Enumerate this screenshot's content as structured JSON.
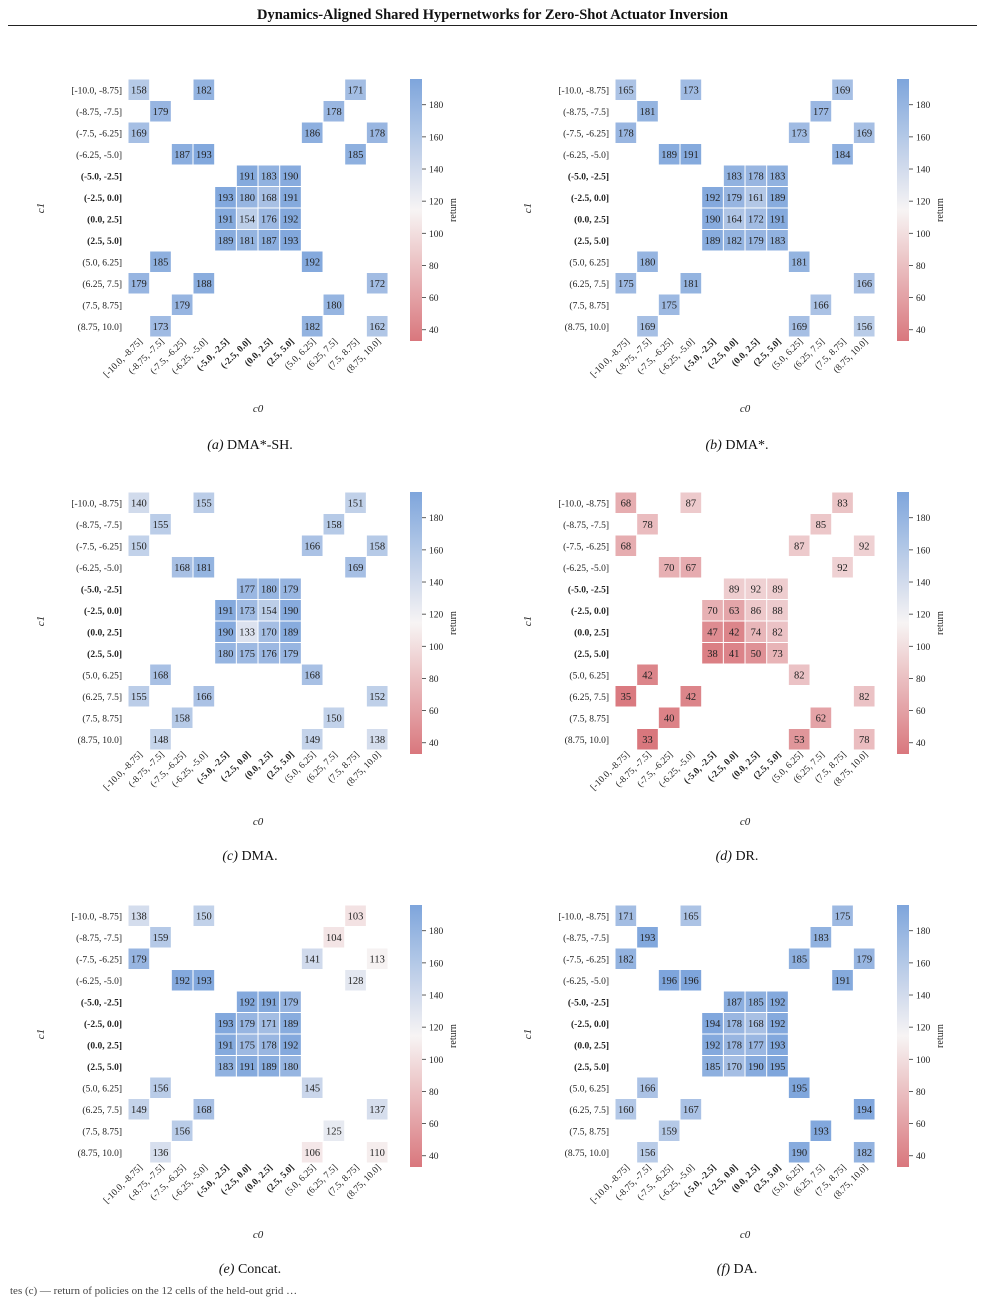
{
  "page": {
    "title": "Dynamics-Aligned Shared Hypernetworks for Zero-Shot Actuator Inversion",
    "footer": "tes (c) — return of policies on the 12 cells of the held-out grid …"
  },
  "colors": {
    "low": "#d9777d",
    "mid": "#f7f4f4",
    "high": "#7ea5dc"
  },
  "chart_data": [
    {
      "type": "heatmap",
      "caption_letter": "(a)",
      "caption_text": "DMA*-SH.",
      "xlabel": "c0",
      "ylabel": "c1",
      "colorbar_label": "return",
      "clim": [
        33,
        196
      ],
      "colorbar_ticks": [
        40,
        60,
        80,
        100,
        120,
        140,
        160,
        180
      ],
      "categories": [
        "[-10.0, -8.75]",
        "(-8.75, -7.5]",
        "(-7.5, -6.25]",
        "(-6.25, -5.0]",
        "(-5.0, -2.5]",
        "(-2.5, 0.0]",
        "(0.0, 2.5]",
        "(2.5, 5.0]",
        "(5.0, 6.25]",
        "(6.25, 7.5]",
        "(7.5, 8.75]",
        "(8.75, 10.0]"
      ],
      "bold_categories": [
        4,
        5,
        6,
        7
      ],
      "values": [
        [
          158,
          null,
          null,
          182,
          null,
          null,
          null,
          null,
          null,
          null,
          171,
          null
        ],
        [
          null,
          179,
          null,
          null,
          null,
          null,
          null,
          null,
          null,
          178,
          null,
          null
        ],
        [
          169,
          null,
          null,
          null,
          null,
          null,
          null,
          null,
          186,
          null,
          null,
          178
        ],
        [
          null,
          null,
          187,
          193,
          null,
          null,
          null,
          null,
          null,
          null,
          185,
          null
        ],
        [
          null,
          null,
          null,
          null,
          null,
          191,
          183,
          190,
          null,
          null,
          null,
          null
        ],
        [
          null,
          null,
          null,
          null,
          193,
          180,
          168,
          191,
          null,
          null,
          null,
          null
        ],
        [
          null,
          null,
          null,
          null,
          191,
          154,
          176,
          192,
          null,
          null,
          null,
          null
        ],
        [
          null,
          null,
          null,
          null,
          189,
          181,
          187,
          193,
          null,
          null,
          null,
          null
        ],
        [
          null,
          185,
          null,
          null,
          null,
          null,
          null,
          null,
          192,
          null,
          null,
          null
        ],
        [
          179,
          null,
          null,
          188,
          null,
          null,
          null,
          null,
          null,
          null,
          null,
          172
        ],
        [
          null,
          null,
          179,
          null,
          null,
          null,
          null,
          null,
          null,
          180,
          null,
          null
        ],
        [
          null,
          173,
          null,
          null,
          null,
          null,
          null,
          null,
          182,
          null,
          null,
          162
        ]
      ]
    },
    {
      "type": "heatmap",
      "caption_letter": "(b)",
      "caption_text": "DMA*.",
      "xlabel": "c0",
      "ylabel": "c1",
      "colorbar_label": "return",
      "clim": [
        33,
        196
      ],
      "colorbar_ticks": [
        40,
        60,
        80,
        100,
        120,
        140,
        160,
        180
      ],
      "categories": [
        "[-10.0, -8.75]",
        "(-8.75, -7.5]",
        "(-7.5, -6.25]",
        "(-6.25, -5.0]",
        "(-5.0, -2.5]",
        "(-2.5, 0.0]",
        "(0.0, 2.5]",
        "(2.5, 5.0]",
        "(5.0, 6.25]",
        "(6.25, 7.5]",
        "(7.5, 8.75]",
        "(8.75, 10.0]"
      ],
      "bold_categories": [
        4,
        5,
        6,
        7
      ],
      "values": [
        [
          165,
          null,
          null,
          173,
          null,
          null,
          null,
          null,
          null,
          null,
          169,
          null
        ],
        [
          null,
          181,
          null,
          null,
          null,
          null,
          null,
          null,
          null,
          177,
          null,
          null
        ],
        [
          178,
          null,
          null,
          null,
          null,
          null,
          null,
          null,
          173,
          null,
          null,
          169
        ],
        [
          null,
          null,
          189,
          191,
          null,
          null,
          null,
          null,
          null,
          null,
          184,
          null
        ],
        [
          null,
          null,
          null,
          null,
          null,
          183,
          178,
          183,
          null,
          null,
          null,
          null
        ],
        [
          null,
          null,
          null,
          null,
          192,
          179,
          161,
          189,
          null,
          null,
          null,
          null
        ],
        [
          null,
          null,
          null,
          null,
          190,
          164,
          172,
          191,
          null,
          null,
          null,
          null
        ],
        [
          null,
          null,
          null,
          null,
          189,
          182,
          179,
          183,
          null,
          null,
          null,
          null
        ],
        [
          null,
          180,
          null,
          null,
          null,
          null,
          null,
          null,
          181,
          null,
          null,
          null
        ],
        [
          175,
          null,
          null,
          181,
          null,
          null,
          null,
          null,
          null,
          null,
          null,
          166
        ],
        [
          null,
          null,
          175,
          null,
          null,
          null,
          null,
          null,
          null,
          166,
          null,
          null
        ],
        [
          null,
          169,
          null,
          null,
          null,
          null,
          null,
          null,
          169,
          null,
          null,
          156
        ]
      ]
    },
    {
      "type": "heatmap",
      "caption_letter": "(c)",
      "caption_text": "DMA.",
      "xlabel": "c0",
      "ylabel": "c1",
      "colorbar_label": "return",
      "clim": [
        33,
        196
      ],
      "colorbar_ticks": [
        40,
        60,
        80,
        100,
        120,
        140,
        160,
        180
      ],
      "categories": [
        "[-10.0, -8.75]",
        "(-8.75, -7.5]",
        "(-7.5, -6.25]",
        "(-6.25, -5.0]",
        "(-5.0, -2.5]",
        "(-2.5, 0.0]",
        "(0.0, 2.5]",
        "(2.5, 5.0]",
        "(5.0, 6.25]",
        "(6.25, 7.5]",
        "(7.5, 8.75]",
        "(8.75, 10.0]"
      ],
      "bold_categories": [
        4,
        5,
        6,
        7
      ],
      "values": [
        [
          140,
          null,
          null,
          155,
          null,
          null,
          null,
          null,
          null,
          null,
          151,
          null
        ],
        [
          null,
          155,
          null,
          null,
          null,
          null,
          null,
          null,
          null,
          158,
          null,
          null
        ],
        [
          150,
          null,
          null,
          null,
          null,
          null,
          null,
          null,
          166,
          null,
          null,
          158
        ],
        [
          null,
          null,
          168,
          181,
          null,
          null,
          null,
          null,
          null,
          null,
          169,
          null
        ],
        [
          null,
          null,
          null,
          null,
          null,
          177,
          180,
          179,
          null,
          null,
          null,
          null
        ],
        [
          null,
          null,
          null,
          null,
          191,
          173,
          154,
          190,
          null,
          null,
          null,
          null
        ],
        [
          null,
          null,
          null,
          null,
          190,
          133,
          170,
          189,
          null,
          null,
          null,
          null
        ],
        [
          null,
          null,
          null,
          null,
          180,
          175,
          176,
          179,
          null,
          null,
          null,
          null
        ],
        [
          null,
          168,
          null,
          null,
          null,
          null,
          null,
          null,
          168,
          null,
          null,
          null
        ],
        [
          155,
          null,
          null,
          166,
          null,
          null,
          null,
          null,
          null,
          null,
          null,
          152
        ],
        [
          null,
          null,
          158,
          null,
          null,
          null,
          null,
          null,
          null,
          150,
          null,
          null
        ],
        [
          null,
          148,
          null,
          null,
          null,
          null,
          null,
          null,
          149,
          null,
          null,
          138
        ]
      ]
    },
    {
      "type": "heatmap",
      "caption_letter": "(d)",
      "caption_text": "DR.",
      "xlabel": "c0",
      "ylabel": "c1",
      "colorbar_label": "return",
      "clim": [
        33,
        196
      ],
      "colorbar_ticks": [
        40,
        60,
        80,
        100,
        120,
        140,
        160,
        180
      ],
      "categories": [
        "[-10.0, -8.75]",
        "(-8.75, -7.5]",
        "(-7.5, -6.25]",
        "(-6.25, -5.0]",
        "(-5.0, -2.5]",
        "(-2.5, 0.0]",
        "(0.0, 2.5]",
        "(2.5, 5.0]",
        "(5.0, 6.25]",
        "(6.25, 7.5]",
        "(7.5, 8.75]",
        "(8.75, 10.0]"
      ],
      "bold_categories": [
        4,
        5,
        6,
        7
      ],
      "values": [
        [
          68,
          null,
          null,
          87,
          null,
          null,
          null,
          null,
          null,
          null,
          83,
          null
        ],
        [
          null,
          78,
          null,
          null,
          null,
          null,
          null,
          null,
          null,
          85,
          null,
          null
        ],
        [
          68,
          null,
          null,
          null,
          null,
          null,
          null,
          null,
          87,
          null,
          null,
          92
        ],
        [
          null,
          null,
          70,
          67,
          null,
          null,
          null,
          null,
          null,
          null,
          92,
          null
        ],
        [
          null,
          null,
          null,
          null,
          null,
          89,
          92,
          89,
          null,
          null,
          null,
          null
        ],
        [
          null,
          null,
          null,
          null,
          70,
          63,
          86,
          88,
          null,
          null,
          null,
          null
        ],
        [
          null,
          null,
          null,
          null,
          47,
          42,
          74,
          82,
          null,
          null,
          null,
          null
        ],
        [
          null,
          null,
          null,
          null,
          38,
          41,
          50,
          73,
          null,
          null,
          null,
          null
        ],
        [
          null,
          42,
          null,
          null,
          null,
          null,
          null,
          null,
          82,
          null,
          null,
          null
        ],
        [
          35,
          null,
          null,
          42,
          null,
          null,
          null,
          null,
          null,
          null,
          null,
          82
        ],
        [
          null,
          null,
          40,
          null,
          null,
          null,
          null,
          null,
          null,
          62,
          null,
          null
        ],
        [
          null,
          33,
          null,
          null,
          null,
          null,
          null,
          null,
          53,
          null,
          null,
          78
        ]
      ]
    },
    {
      "type": "heatmap",
      "caption_letter": "(e)",
      "caption_text": "Concat.",
      "xlabel": "c0",
      "ylabel": "c1",
      "colorbar_label": "return",
      "clim": [
        33,
        196
      ],
      "colorbar_ticks": [
        40,
        60,
        80,
        100,
        120,
        140,
        160,
        180
      ],
      "categories": [
        "[-10.0, -8.75]",
        "(-8.75, -7.5]",
        "(-7.5, -6.25]",
        "(-6.25, -5.0]",
        "(-5.0, -2.5]",
        "(-2.5, 0.0]",
        "(0.0, 2.5]",
        "(2.5, 5.0]",
        "(5.0, 6.25]",
        "(6.25, 7.5]",
        "(7.5, 8.75]",
        "(8.75, 10.0]"
      ],
      "bold_categories": [
        4,
        5,
        6,
        7
      ],
      "values": [
        [
          138,
          null,
          null,
          150,
          null,
          null,
          null,
          null,
          null,
          null,
          103,
          null
        ],
        [
          null,
          159,
          null,
          null,
          null,
          null,
          null,
          null,
          null,
          104,
          null,
          null
        ],
        [
          179,
          null,
          null,
          null,
          null,
          null,
          null,
          null,
          141,
          null,
          null,
          113
        ],
        [
          null,
          null,
          192,
          193,
          null,
          null,
          null,
          null,
          null,
          null,
          128,
          null
        ],
        [
          null,
          null,
          null,
          null,
          null,
          192,
          191,
          179,
          null,
          null,
          null,
          null
        ],
        [
          null,
          null,
          null,
          null,
          193,
          179,
          171,
          189,
          null,
          null,
          null,
          null
        ],
        [
          null,
          null,
          null,
          null,
          191,
          175,
          178,
          192,
          null,
          null,
          null,
          null
        ],
        [
          null,
          null,
          null,
          null,
          183,
          191,
          189,
          180,
          null,
          null,
          null,
          null
        ],
        [
          null,
          156,
          null,
          null,
          null,
          null,
          null,
          null,
          145,
          null,
          null,
          null
        ],
        [
          149,
          null,
          null,
          168,
          null,
          null,
          null,
          null,
          null,
          null,
          null,
          137
        ],
        [
          null,
          null,
          156,
          null,
          null,
          null,
          null,
          null,
          null,
          125,
          null,
          null
        ],
        [
          null,
          136,
          null,
          null,
          null,
          null,
          null,
          null,
          106,
          null,
          null,
          110
        ]
      ]
    },
    {
      "type": "heatmap",
      "caption_letter": "(f)",
      "caption_text": "DA.",
      "xlabel": "c0",
      "ylabel": "c1",
      "colorbar_label": "return",
      "clim": [
        33,
        196
      ],
      "colorbar_ticks": [
        40,
        60,
        80,
        100,
        120,
        140,
        160,
        180
      ],
      "categories": [
        "[-10.0, -8.75]",
        "(-8.75, -7.5]",
        "(-7.5, -6.25]",
        "(-6.25, -5.0]",
        "(-5.0, -2.5]",
        "(-2.5, 0.0]",
        "(0.0, 2.5]",
        "(2.5, 5.0]",
        "(5.0, 6.25]",
        "(6.25, 7.5]",
        "(7.5, 8.75]",
        "(8.75, 10.0]"
      ],
      "bold_categories": [
        4,
        5,
        6,
        7
      ],
      "values": [
        [
          171,
          null,
          null,
          165,
          null,
          null,
          null,
          null,
          null,
          null,
          175,
          null
        ],
        [
          null,
          193,
          null,
          null,
          null,
          null,
          null,
          null,
          null,
          183,
          null,
          null
        ],
        [
          182,
          null,
          null,
          null,
          null,
          null,
          null,
          null,
          185,
          null,
          null,
          179
        ],
        [
          null,
          null,
          196,
          196,
          null,
          null,
          null,
          null,
          null,
          null,
          191,
          null
        ],
        [
          null,
          null,
          null,
          null,
          null,
          187,
          185,
          192,
          null,
          null,
          null,
          null
        ],
        [
          null,
          null,
          null,
          null,
          194,
          178,
          168,
          192,
          null,
          null,
          null,
          null
        ],
        [
          null,
          null,
          null,
          null,
          192,
          178,
          177,
          193,
          null,
          null,
          null,
          null
        ],
        [
          null,
          null,
          null,
          null,
          185,
          170,
          190,
          195,
          null,
          null,
          null,
          null
        ],
        [
          null,
          166,
          null,
          null,
          null,
          null,
          null,
          null,
          195,
          null,
          null,
          null
        ],
        [
          160,
          null,
          null,
          167,
          null,
          null,
          null,
          null,
          null,
          null,
          null,
          194
        ],
        [
          null,
          null,
          159,
          null,
          null,
          null,
          null,
          null,
          null,
          193,
          null,
          null
        ],
        [
          null,
          156,
          null,
          null,
          null,
          null,
          null,
          null,
          190,
          null,
          null,
          182
        ]
      ]
    }
  ]
}
